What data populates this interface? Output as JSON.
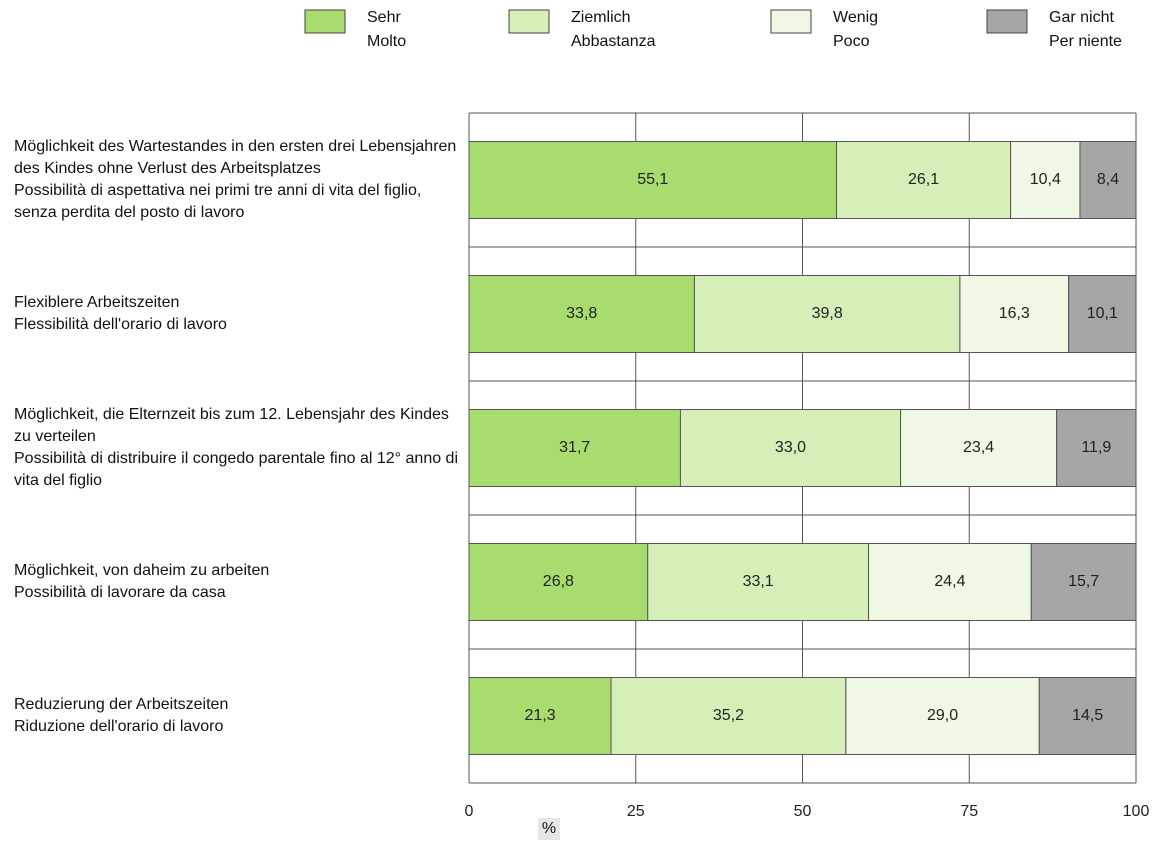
{
  "chart_data": {
    "type": "stacked-bar-horizontal",
    "categories": [
      "Möglichkeit des Wartestandes in den ersten drei Lebensjahren des Kindes ohne Verlust des Arbeitsplatzes\nPossibilità di aspettativa nei primi tre anni di vita del figlio, senza perdita del posto di lavoro",
      "Flexiblere Arbeitszeiten\nFlessibilità dell'orario di lavoro",
      "Möglichkeit, die Elternzeit bis zum 12. Lebensjahr des Kindes zu verteilen\nPossibilità di distribuire il congedo parentale fino al 12° anno di vita del figlio",
      "Möglichkeit, von daheim zu arbeiten\nPossibilità di lavorare da casa",
      "Reduzierung der Arbeitszeiten\nRiduzione dell'orario di lavoro"
    ],
    "series": [
      {
        "name": "Sehr\nMolto",
        "color": "#a9dc6e",
        "values": [
          55.1,
          33.8,
          31.7,
          26.8,
          21.3
        ],
        "value_labels": [
          "55,1",
          "33,8",
          "31,7",
          "26,8",
          "21,3"
        ]
      },
      {
        "name": "Ziemlich\nAbbastanza",
        "color": "#d6eeb8",
        "values": [
          26.1,
          39.8,
          33.0,
          33.1,
          35.2
        ],
        "value_labels": [
          "26,1",
          "39,8",
          "33,0",
          "33,1",
          "35,2"
        ]
      },
      {
        "name": "Wenig\nPoco",
        "color": "#eef8e4",
        "values": [
          10.4,
          16.3,
          23.4,
          24.4,
          29.0
        ],
        "value_labels": [
          "10,4",
          "16,3",
          "23,4",
          "24,4",
          "29,0"
        ]
      },
      {
        "name": "Gar nicht\nPer niente",
        "color": "#a6a6a6",
        "values": [
          8.4,
          10.1,
          11.9,
          15.7,
          14.5
        ],
        "value_labels": [
          "8,4",
          "10,1",
          "11,9",
          "15,7",
          "14,5"
        ]
      }
    ],
    "xlabel": "%",
    "xlim": [
      0,
      100
    ],
    "xticks": [
      0,
      25,
      50,
      75,
      100
    ],
    "grid": true,
    "legend": "top"
  }
}
